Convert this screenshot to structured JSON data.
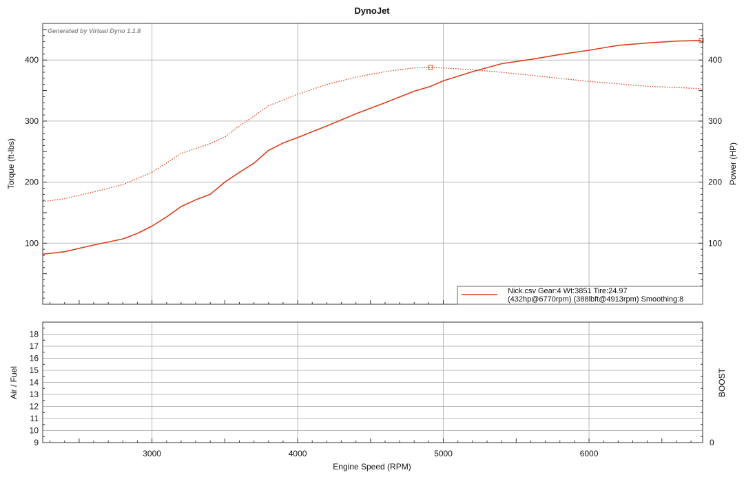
{
  "chart_data": [
    {
      "type": "line",
      "title": "DynoJet",
      "watermark": "Generated by Virtual Dyno 1.1.8",
      "xlabel": "Engine Speed (RPM)",
      "ylabel_left": "Torque (ft-lbs)",
      "ylabel_right": "Power (HP)",
      "xlim": [
        2250,
        6780
      ],
      "ylim": [
        0,
        460
      ],
      "x_ticks": [
        3000,
        4000,
        5000,
        6000
      ],
      "y_ticks": [
        100,
        200,
        300,
        400
      ],
      "grid": true,
      "legend": {
        "position": "bottom-right",
        "line1": "Nick.csv Gear:4 Wt:3851 Tire:24.97",
        "line2": "(432hp@6770rpm) (388lbft@4913rpm) Smoothing:8"
      },
      "peak_torque_marker": {
        "x": 4913,
        "y": 388
      },
      "series": [
        {
          "role": "power",
          "style": "solid",
          "color": "#d9401a",
          "x": [
            2250,
            2400,
            2600,
            2800,
            2900,
            3000,
            3100,
            3200,
            3300,
            3400,
            3500,
            3600,
            3700,
            3800,
            3900,
            4000,
            4200,
            4400,
            4600,
            4800,
            4913,
            5000,
            5200,
            5400,
            5600,
            5800,
            6000,
            6200,
            6400,
            6600,
            6770
          ],
          "y": [
            82,
            86,
            97,
            107,
            116,
            128,
            143,
            160,
            171,
            180,
            200,
            216,
            231,
            252,
            264,
            273,
            292,
            312,
            330,
            349,
            357,
            366,
            381,
            394,
            401,
            409,
            416,
            424,
            428,
            431,
            432
          ]
        },
        {
          "role": "torque",
          "style": "dotted",
          "color": "#d9401a",
          "x": [
            2250,
            2400,
            2600,
            2800,
            3000,
            3200,
            3400,
            3500,
            3600,
            3700,
            3800,
            4000,
            4200,
            4400,
            4600,
            4800,
            4913,
            5000,
            5200,
            5400,
            5600,
            5800,
            6000,
            6200,
            6400,
            6600,
            6770
          ],
          "y": [
            168,
            173,
            184,
            196,
            216,
            247,
            263,
            274,
            292,
            308,
            325,
            344,
            360,
            372,
            381,
            387,
            388,
            387,
            384,
            380,
            375,
            370,
            365,
            361,
            357,
            355,
            353
          ]
        }
      ]
    },
    {
      "type": "line",
      "ylabel_left": "Air / Fuel",
      "ylabel_right": "BOOST",
      "xlim": [
        2250,
        6780
      ],
      "ylim": [
        9,
        19
      ],
      "x_ticks": [
        3000,
        4000,
        5000,
        6000
      ],
      "y_ticks": [
        9,
        10,
        11,
        12,
        13,
        14,
        15,
        16,
        17,
        18
      ],
      "right_ticks": [
        0
      ],
      "grid": true,
      "series": []
    }
  ]
}
